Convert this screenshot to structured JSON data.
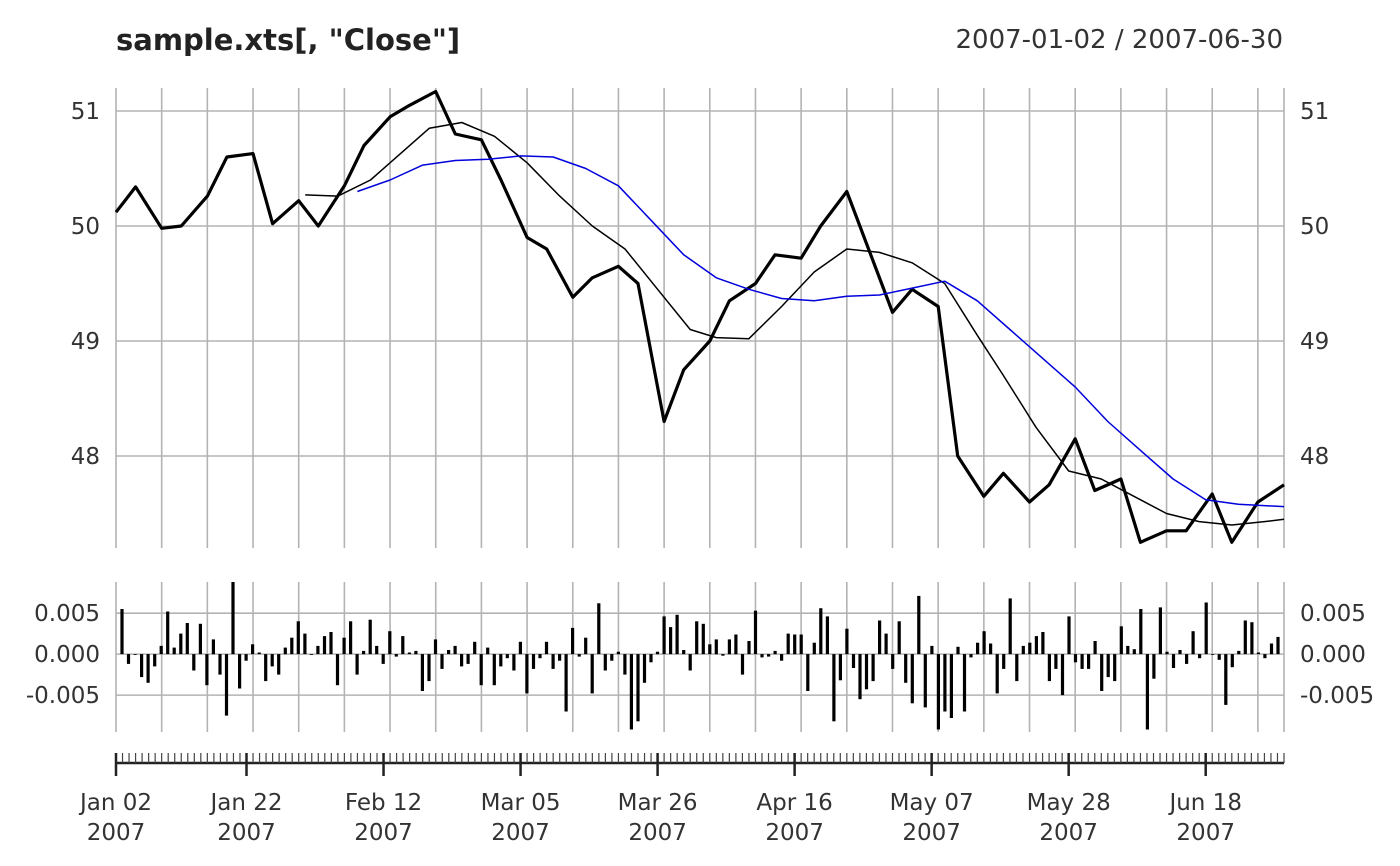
{
  "chart_data": [
    {
      "type": "line",
      "title": "sample.xts[, \"Close\"]",
      "subtitle": "2007-01-02 / 2007-06-30",
      "x_start": "2007-01-02",
      "x_end": "2007-06-30",
      "ylim": [
        47.2,
        51.2
      ],
      "yticks": [
        48,
        49,
        50,
        51
      ],
      "ytick_labels": [
        "48",
        "49",
        "50",
        "51"
      ],
      "grid": true,
      "series": [
        {
          "color": "#000000",
          "x": [
            "2007-01-02",
            "2007-01-05",
            "2007-01-09",
            "2007-01-12",
            "2007-01-16",
            "2007-01-19",
            "2007-01-23",
            "2007-01-26",
            "2007-01-30",
            "2007-02-02",
            "2007-02-06",
            "2007-02-09",
            "2007-02-13",
            "2007-02-16",
            "2007-02-20",
            "2007-02-23",
            "2007-02-27",
            "2007-03-02",
            "2007-03-06",
            "2007-03-09",
            "2007-03-13",
            "2007-03-16",
            "2007-03-20",
            "2007-03-23",
            "2007-03-27",
            "2007-03-30",
            "2007-04-03",
            "2007-04-06",
            "2007-04-10",
            "2007-04-13",
            "2007-04-17",
            "2007-04-20",
            "2007-04-24",
            "2007-04-27",
            "2007-05-01",
            "2007-05-04",
            "2007-05-08",
            "2007-05-11",
            "2007-05-15",
            "2007-05-18",
            "2007-05-22",
            "2007-05-25",
            "2007-05-29",
            "2007-06-01",
            "2007-06-05",
            "2007-06-08",
            "2007-06-12",
            "2007-06-15",
            "2007-06-19",
            "2007-06-22",
            "2007-06-26",
            "2007-06-30"
          ],
          "values": [
            50.12,
            50.34,
            49.98,
            50.0,
            50.26,
            50.6,
            50.63,
            50.02,
            50.22,
            50.0,
            50.35,
            50.7,
            50.95,
            51.05,
            51.17,
            50.8,
            50.75,
            50.4,
            49.9,
            49.8,
            49.38,
            49.55,
            49.65,
            49.5,
            48.3,
            48.75,
            49.0,
            49.35,
            49.5,
            49.75,
            49.72,
            50.0,
            50.3,
            49.85,
            49.25,
            49.45,
            49.3,
            48.0,
            47.65,
            47.85,
            47.6,
            47.75,
            48.15,
            47.7,
            47.8,
            47.25,
            47.35,
            47.35,
            47.67,
            47.25,
            47.6,
            47.75
          ]
        },
        {
          "color": "#000000",
          "x": [
            "2007-01-31",
            "2007-02-05",
            "2007-02-10",
            "2007-02-15",
            "2007-02-19",
            "2007-02-24",
            "2007-03-01",
            "2007-03-06",
            "2007-03-11",
            "2007-03-16",
            "2007-03-21",
            "2007-03-26",
            "2007-03-31",
            "2007-04-04",
            "2007-04-09",
            "2007-04-14",
            "2007-04-19",
            "2007-04-24",
            "2007-04-29",
            "2007-05-04",
            "2007-05-09",
            "2007-05-14",
            "2007-05-18",
            "2007-05-23",
            "2007-05-28",
            "2007-06-02",
            "2007-06-07",
            "2007-06-12",
            "2007-06-17",
            "2007-06-22",
            "2007-06-27",
            "2007-06-30"
          ],
          "values": [
            50.27,
            50.26,
            50.4,
            50.65,
            50.85,
            50.9,
            50.78,
            50.55,
            50.26,
            50.0,
            49.8,
            49.45,
            49.1,
            49.03,
            49.02,
            49.3,
            49.6,
            49.8,
            49.77,
            49.68,
            49.5,
            49.05,
            48.7,
            48.25,
            47.87,
            47.8,
            47.65,
            47.5,
            47.43,
            47.4,
            47.43,
            47.45
          ]
        },
        {
          "color": "#0000dd",
          "x": [
            "2007-02-08",
            "2007-02-13",
            "2007-02-18",
            "2007-02-23",
            "2007-02-28",
            "2007-03-05",
            "2007-03-10",
            "2007-03-15",
            "2007-03-20",
            "2007-03-25",
            "2007-03-30",
            "2007-04-04",
            "2007-04-09",
            "2007-04-14",
            "2007-04-19",
            "2007-04-24",
            "2007-04-29",
            "2007-05-04",
            "2007-05-09",
            "2007-05-14",
            "2007-05-19",
            "2007-05-24",
            "2007-05-29",
            "2007-06-03",
            "2007-06-08",
            "2007-06-13",
            "2007-06-18",
            "2007-06-23",
            "2007-06-30"
          ],
          "values": [
            50.3,
            50.4,
            50.53,
            50.57,
            50.58,
            50.61,
            50.6,
            50.5,
            50.35,
            50.05,
            49.75,
            49.55,
            49.45,
            49.37,
            49.35,
            49.39,
            49.4,
            49.46,
            49.52,
            49.35,
            49.1,
            48.85,
            48.6,
            48.3,
            48.05,
            47.8,
            47.62,
            47.58,
            47.56
          ]
        }
      ]
    },
    {
      "type": "bar",
      "x_start": "2007-01-02",
      "x_end": "2007-06-30",
      "ylim": [
        -0.0095,
        0.0088
      ],
      "yticks": [
        0.005,
        0.0,
        -0.005
      ],
      "ytick_labels": [
        "0.005",
        "0.000",
        "-0.005"
      ],
      "grid": true,
      "bar_color": "#000000",
      "values": [
        0.0055,
        -0.0012,
        0.0,
        -0.0028,
        -0.0035,
        -0.0015,
        0.001,
        0.0052,
        0.0008,
        0.0025,
        0.0038,
        -0.002,
        0.0037,
        -0.0038,
        0.0018,
        -0.0025,
        -0.0075,
        0.0088,
        -0.0042,
        -0.0008,
        0.0012,
        0.0002,
        -0.0033,
        -0.0015,
        -0.0025,
        0.0008,
        0.002,
        0.004,
        0.0025,
        0.0,
        0.001,
        0.0022,
        0.0027,
        -0.0038,
        0.002,
        0.004,
        -0.0025,
        0.0004,
        0.0042,
        0.001,
        -0.0012,
        0.0028,
        -0.0003,
        0.0022,
        0.0002,
        0.0004,
        -0.0045,
        -0.0033,
        0.0018,
        -0.0018,
        0.0005,
        0.001,
        -0.0015,
        -0.0012,
        0.0015,
        -0.0038,
        0.0008,
        -0.0038,
        -0.0015,
        -0.0005,
        -0.002,
        0.0015,
        -0.0048,
        -0.0018,
        -0.0005,
        0.0015,
        -0.0018,
        -0.0008,
        -0.007,
        0.0032,
        -0.0003,
        0.002,
        -0.0048,
        0.0062,
        -0.002,
        -0.0008,
        0.0003,
        -0.0025,
        -0.0092,
        -0.0082,
        -0.0035,
        -0.001,
        0.0003,
        0.0046,
        0.0033,
        0.0048,
        0.0005,
        -0.002,
        0.004,
        0.0037,
        0.0012,
        0.0018,
        -0.0002,
        0.0018,
        0.0024,
        -0.0025,
        0.0016,
        0.0053,
        -0.0004,
        -0.0003,
        0.0004,
        -0.0008,
        0.0025,
        0.0024,
        0.0024,
        -0.0045,
        0.0014,
        0.0056,
        0.0046,
        -0.0082,
        -0.0032,
        0.0031,
        -0.0017,
        -0.0055,
        -0.0043,
        -0.0033,
        0.0041,
        0.0025,
        -0.0018,
        0.004,
        -0.0035,
        -0.006,
        0.0071,
        -0.0065,
        0.001,
        -0.0092,
        -0.007,
        -0.0078,
        0.0009,
        -0.007,
        -0.0004,
        0.0014,
        0.0028,
        0.0013,
        -0.0048,
        -0.0018,
        0.0068,
        -0.0033,
        0.001,
        0.0014,
        0.0022,
        0.0027,
        -0.0033,
        -0.0018,
        -0.005,
        0.0046,
        -0.001,
        -0.0018,
        -0.0018,
        0.0016,
        -0.0045,
        -0.0028,
        -0.0033,
        0.0034,
        0.001,
        0.0006,
        0.0055,
        -0.0092,
        -0.003,
        0.0057,
        0.0003,
        -0.0017,
        0.0005,
        -0.0012,
        0.0028,
        -0.0005,
        0.0063,
        -0.0001,
        -0.0007,
        -0.0062,
        -0.0016,
        0.0004,
        0.0041,
        0.0039,
        0.0002,
        -0.0005,
        0.0013,
        0.0021
      ]
    },
    {
      "type": "table",
      "x_tick_labels": [
        {
          "date": "2007-01-02",
          "line1": "Jan 02",
          "line2": "2007"
        },
        {
          "date": "2007-01-22",
          "line1": "Jan 22",
          "line2": "2007"
        },
        {
          "date": "2007-02-12",
          "line1": "Feb 12",
          "line2": "2007"
        },
        {
          "date": "2007-03-05",
          "line1": "Mar 05",
          "line2": "2007"
        },
        {
          "date": "2007-03-26",
          "line1": "Mar 26",
          "line2": "2007"
        },
        {
          "date": "2007-04-16",
          "line1": "Apr 16",
          "line2": "2007"
        },
        {
          "date": "2007-05-07",
          "line1": "May 07",
          "line2": "2007"
        },
        {
          "date": "2007-05-28",
          "line1": "May 28",
          "line2": "2007"
        },
        {
          "date": "2007-06-18",
          "line1": "Jun 18",
          "line2": "2007"
        }
      ]
    }
  ]
}
